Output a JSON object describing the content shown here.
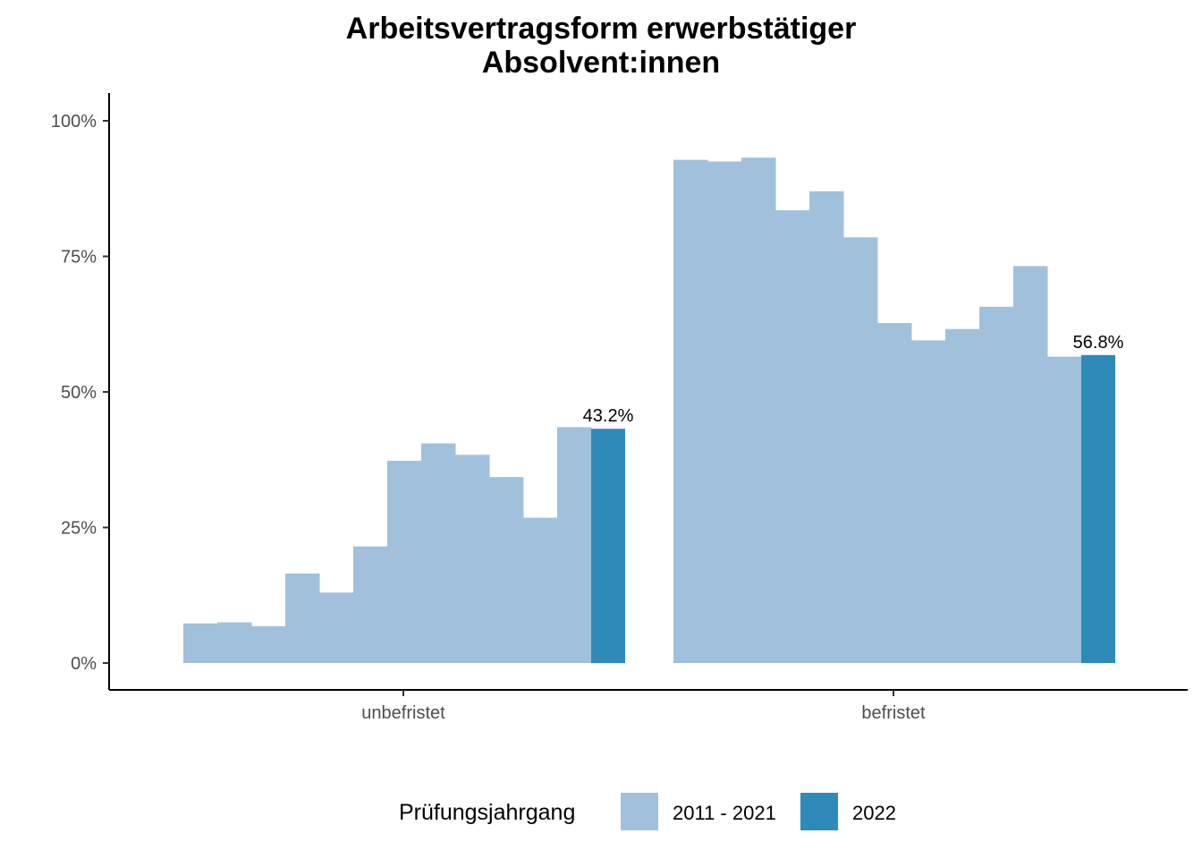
{
  "title_line1": "Arbeitsvertragsform erwerbstätiger",
  "title_line2": "Absolvent:innen",
  "legend": {
    "title": "Prüfungsjahrgang",
    "items": [
      {
        "label": "2011 - 2021",
        "color": "#a1c0dc"
      },
      {
        "label": "2022",
        "color": "#2e8ab8"
      }
    ]
  },
  "chart_data": {
    "type": "bar",
    "categories": [
      "unbefristet",
      "befristet"
    ],
    "ylim": [
      0,
      1.05
    ],
    "yticks": [
      0,
      0.25,
      0.5,
      0.75,
      1.0
    ],
    "ytick_labels": [
      "0%",
      "25%",
      "50%",
      "75%",
      "100%"
    ],
    "series_colors": {
      "2011 - 2021": "#a1c0dc",
      "2022": "#2e8ab8"
    },
    "groups": [
      {
        "category": "unbefristet",
        "values_2011_2021": [
          0.073,
          0.075,
          0.068,
          0.165,
          0.13,
          0.215,
          0.373,
          0.405,
          0.384,
          0.343,
          0.268,
          0.435
        ],
        "value_2022": 0.432,
        "label_2022": "43.2%"
      },
      {
        "category": "befristet",
        "values_2011_2021": [
          0.928,
          0.925,
          0.932,
          0.835,
          0.87,
          0.785,
          0.627,
          0.595,
          0.616,
          0.657,
          0.732,
          0.565
        ],
        "value_2022": 0.568,
        "label_2022": "56.8%"
      }
    ],
    "grid": false,
    "legend_position": "bottom"
  }
}
